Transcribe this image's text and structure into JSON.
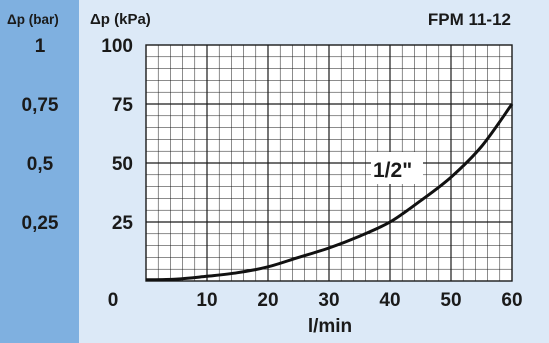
{
  "chart_data": {
    "type": "line",
    "title": "FPM 11-12",
    "y2label": "Δp (bar)",
    "ylabel": "Δp (kPa)",
    "xlabel": "l/min",
    "xlim": [
      0,
      60
    ],
    "ylim": [
      0,
      100
    ],
    "x_ticks": [
      "10",
      "20",
      "30",
      "40",
      "50",
      "60"
    ],
    "x_zero_label": "0",
    "y_ticks": [
      "100",
      "75",
      "50",
      "25"
    ],
    "y2_ticks": [
      "1",
      "0,75",
      "0,5",
      "0,25"
    ],
    "grid": true,
    "colors": {
      "bar_column": "#7fb0e0",
      "panel": "#dce9f7",
      "grid": "#1a1a1a",
      "curve": "#111111"
    },
    "series": [
      {
        "name": "1/2\"",
        "x": [
          0,
          5,
          10,
          15,
          20,
          25,
          30,
          35,
          40,
          45,
          50,
          55,
          60
        ],
        "y": [
          0.5,
          0.8,
          2,
          3.5,
          6,
          10,
          14,
          19,
          25,
          34,
          44,
          57,
          75
        ]
      }
    ]
  }
}
